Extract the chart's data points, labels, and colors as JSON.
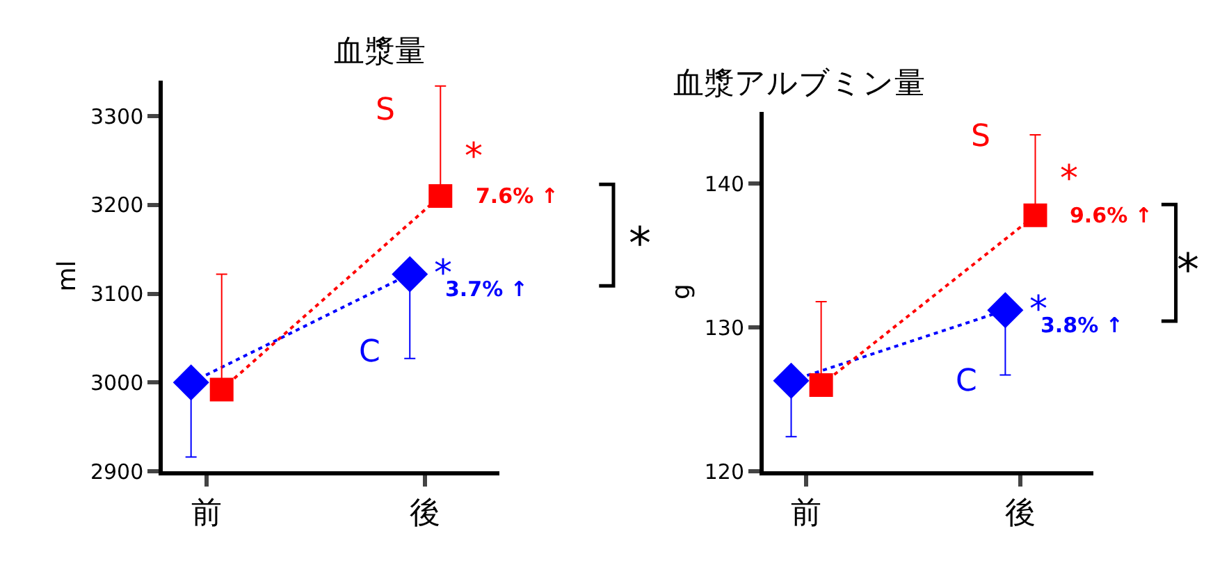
{
  "chart_data": [
    {
      "type": "line",
      "title": "血漿量",
      "ylabel": "ml",
      "categories": [
        "前",
        "後"
      ],
      "ylim": [
        2900,
        3340
      ],
      "yticks": [
        2900,
        3000,
        3100,
        3200,
        3300
      ],
      "line_style": "dotted",
      "series": [
        {
          "name": "C",
          "color": "#0000ff",
          "marker": "diamond",
          "values": [
            3000,
            3122
          ],
          "errors": [
            [
              2916,
              3000
            ],
            [
              3027,
              3122
            ]
          ]
        },
        {
          "name": "S",
          "color": "#ff0000",
          "marker": "square",
          "values": [
            2992,
            3210
          ],
          "errors": [
            [
              2992,
              3122
            ],
            [
              3210,
              3334
            ]
          ]
        }
      ],
      "annotations": [
        "*",
        "3.7% ↑",
        "*",
        "7.6% ↑",
        "*"
      ]
    },
    {
      "type": "line",
      "title": "血漿アルブミン量",
      "ylabel": "g",
      "categories": [
        "前",
        "後"
      ],
      "ylim": [
        120,
        145
      ],
      "yticks": [
        120,
        130,
        140
      ],
      "line_style": "dotted",
      "series": [
        {
          "name": "C",
          "color": "#0000ff",
          "marker": "diamond",
          "values": [
            126.3,
            131.2
          ],
          "errors": [
            [
              122.4,
              126.3
            ],
            [
              126.7,
              131.2
            ]
          ]
        },
        {
          "name": "S",
          "color": "#ff0000",
          "marker": "square",
          "values": [
            126.0,
            137.8
          ],
          "errors": [
            [
              126.0,
              131.8
            ],
            [
              137.8,
              143.4
            ]
          ]
        }
      ],
      "annotations": [
        "*",
        "3.8% ↑",
        "*",
        "9.6% ↑",
        "*"
      ]
    }
  ]
}
